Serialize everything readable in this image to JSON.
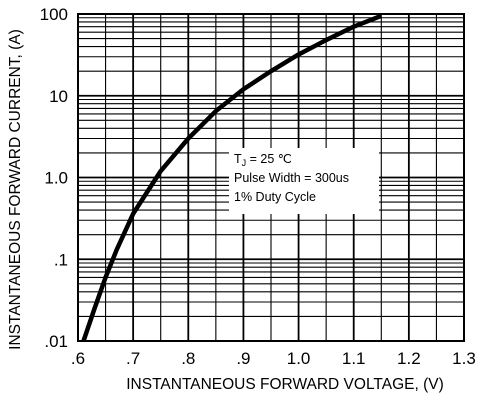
{
  "chart_data": {
    "type": "line",
    "xlabel": "INSTANTANEOUS FORWARD VOLTAGE, (V)",
    "ylabel": "INSTANTANEOUS FORWARD CURRENT, (A)",
    "xlim": [
      0.6,
      1.3
    ],
    "ylim": [
      0.01,
      100
    ],
    "y_scale": "log",
    "grid": true,
    "x_ticks": [
      ".6",
      ".7",
      ".8",
      ".9",
      "1.0",
      "1.1",
      "1.2",
      "1.3"
    ],
    "y_ticks": [
      ".01",
      ".1",
      "1.0",
      "10",
      "100"
    ],
    "annotation": {
      "tj_symbol": "T",
      "tj_subscript": "J",
      "tj_value": " = 25 ℃",
      "line2": "Pulse Width = 300us",
      "line3": "1% Duty Cycle"
    },
    "series": [
      {
        "x": [
          0.61,
          0.63,
          0.65,
          0.67,
          0.7,
          0.75,
          0.8,
          0.85,
          0.9,
          0.95,
          1.0,
          1.05,
          1.1,
          1.15
        ],
        "y": [
          0.01,
          0.025,
          0.06,
          0.13,
          0.36,
          1.2,
          3.0,
          6.5,
          12,
          20,
          32,
          48,
          70,
          95
        ]
      }
    ]
  },
  "colors": {
    "line": "#000000",
    "grid": "#000000",
    "background": "#ffffff"
  }
}
